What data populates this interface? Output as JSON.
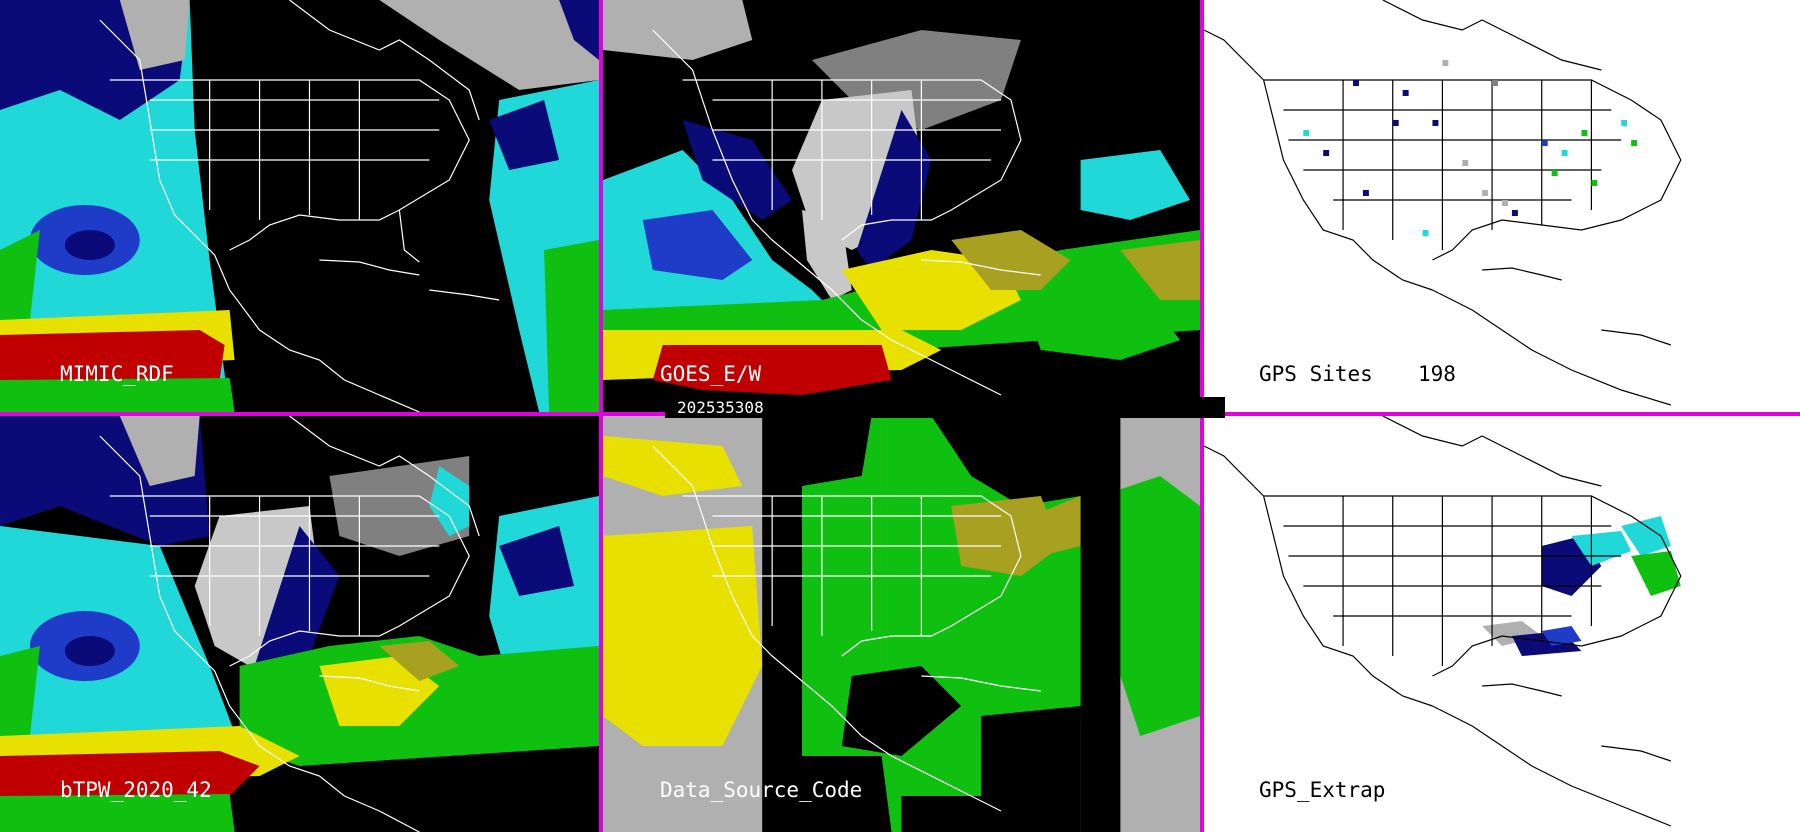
{
  "grid": {
    "columns": 3,
    "rows": 2
  },
  "colors": {
    "separator": "#e000e0",
    "land_dry": "#000000",
    "gray_low": "#b0b0b0",
    "navy": "#0a0a78",
    "blue": "#1e3cc8",
    "cyan": "#20d8d8",
    "green": "#10c010",
    "yellow": "#e8e000",
    "olive": "#a8a020",
    "red": "#c00000",
    "white_background": "#ffffff"
  },
  "timestamp": "202535308",
  "panels": [
    {
      "id": "mimic-rdf",
      "label": "MIMIC_RDF",
      "theme": "dark",
      "style": "tpw-ocean"
    },
    {
      "id": "goes-ew",
      "label": "GOES_E/W",
      "theme": "dark",
      "style": "goes"
    },
    {
      "id": "gps-sites",
      "label": "GPS Sites",
      "count": "198",
      "theme": "light",
      "style": "sites"
    },
    {
      "id": "btpw",
      "label": "bTPW_2020_42",
      "theme": "dark",
      "style": "blended"
    },
    {
      "id": "data-source",
      "label": "Data_Source_Code",
      "theme": "dark",
      "style": "source"
    },
    {
      "id": "gps-extrap",
      "label": "GPS_Extrap",
      "theme": "light",
      "style": "extrap"
    }
  ]
}
